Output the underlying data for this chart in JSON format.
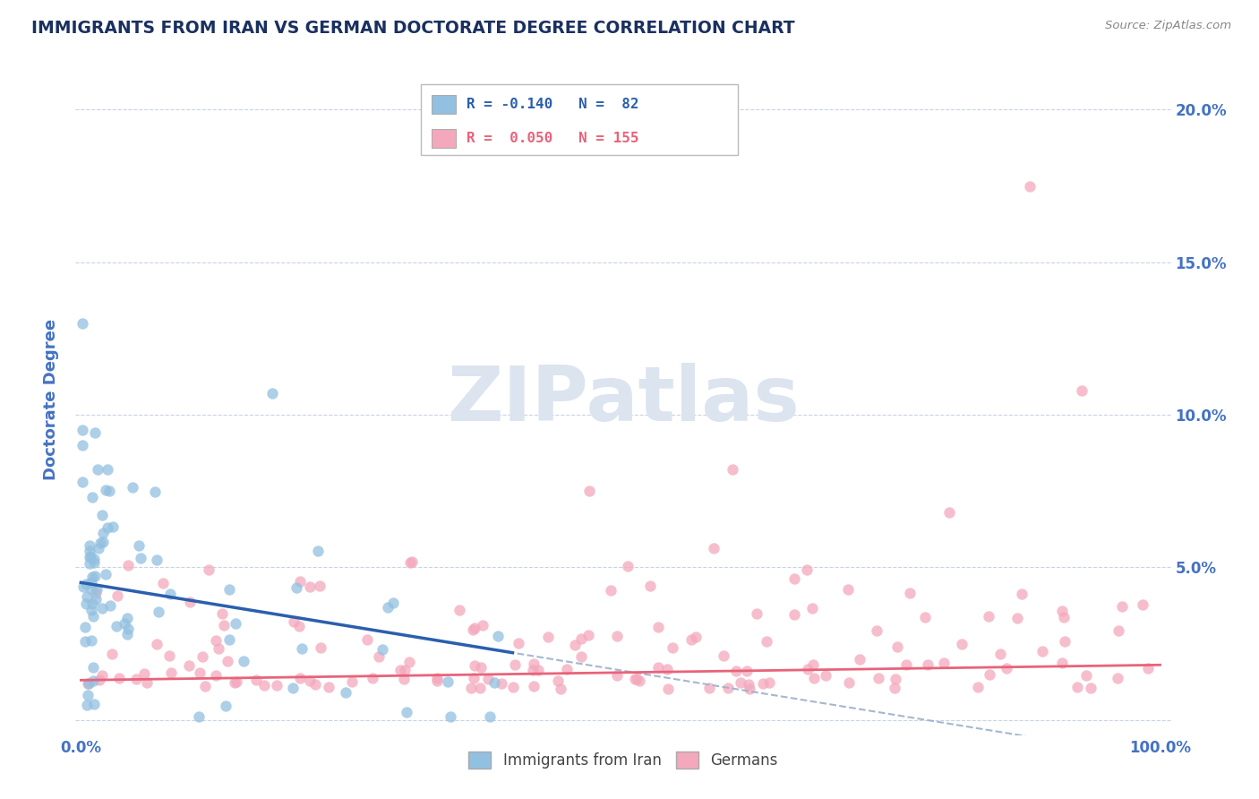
{
  "title": "IMMIGRANTS FROM IRAN VS GERMAN DOCTORATE DEGREE CORRELATION CHART",
  "source": "Source: ZipAtlas.com",
  "ylabel": "Doctorate Degree",
  "series1_color": "#92c0e0",
  "series2_color": "#f4a8bc",
  "series1_line_color": "#2b5fad",
  "series2_line_color": "#e8637a",
  "dashed_line_color": "#9ab0cc",
  "watermark_text": "ZIPatlas",
  "watermark_color": "#dce4f0",
  "background_color": "#ffffff",
  "grid_color": "#c8d4e4",
  "title_color": "#1a3060",
  "axis_label_color": "#4472c4",
  "series1_R": -0.14,
  "series1_N": 82,
  "series2_R": 0.05,
  "series2_N": 155,
  "legend_row1": "R = -0.140   N =  82",
  "legend_row2": "R =  0.050   N = 155",
  "legend_color1": "#2b5fad",
  "legend_color2": "#e8637a",
  "legend_sq_color1": "#92c0e0",
  "legend_sq_color2": "#f4a8bc"
}
